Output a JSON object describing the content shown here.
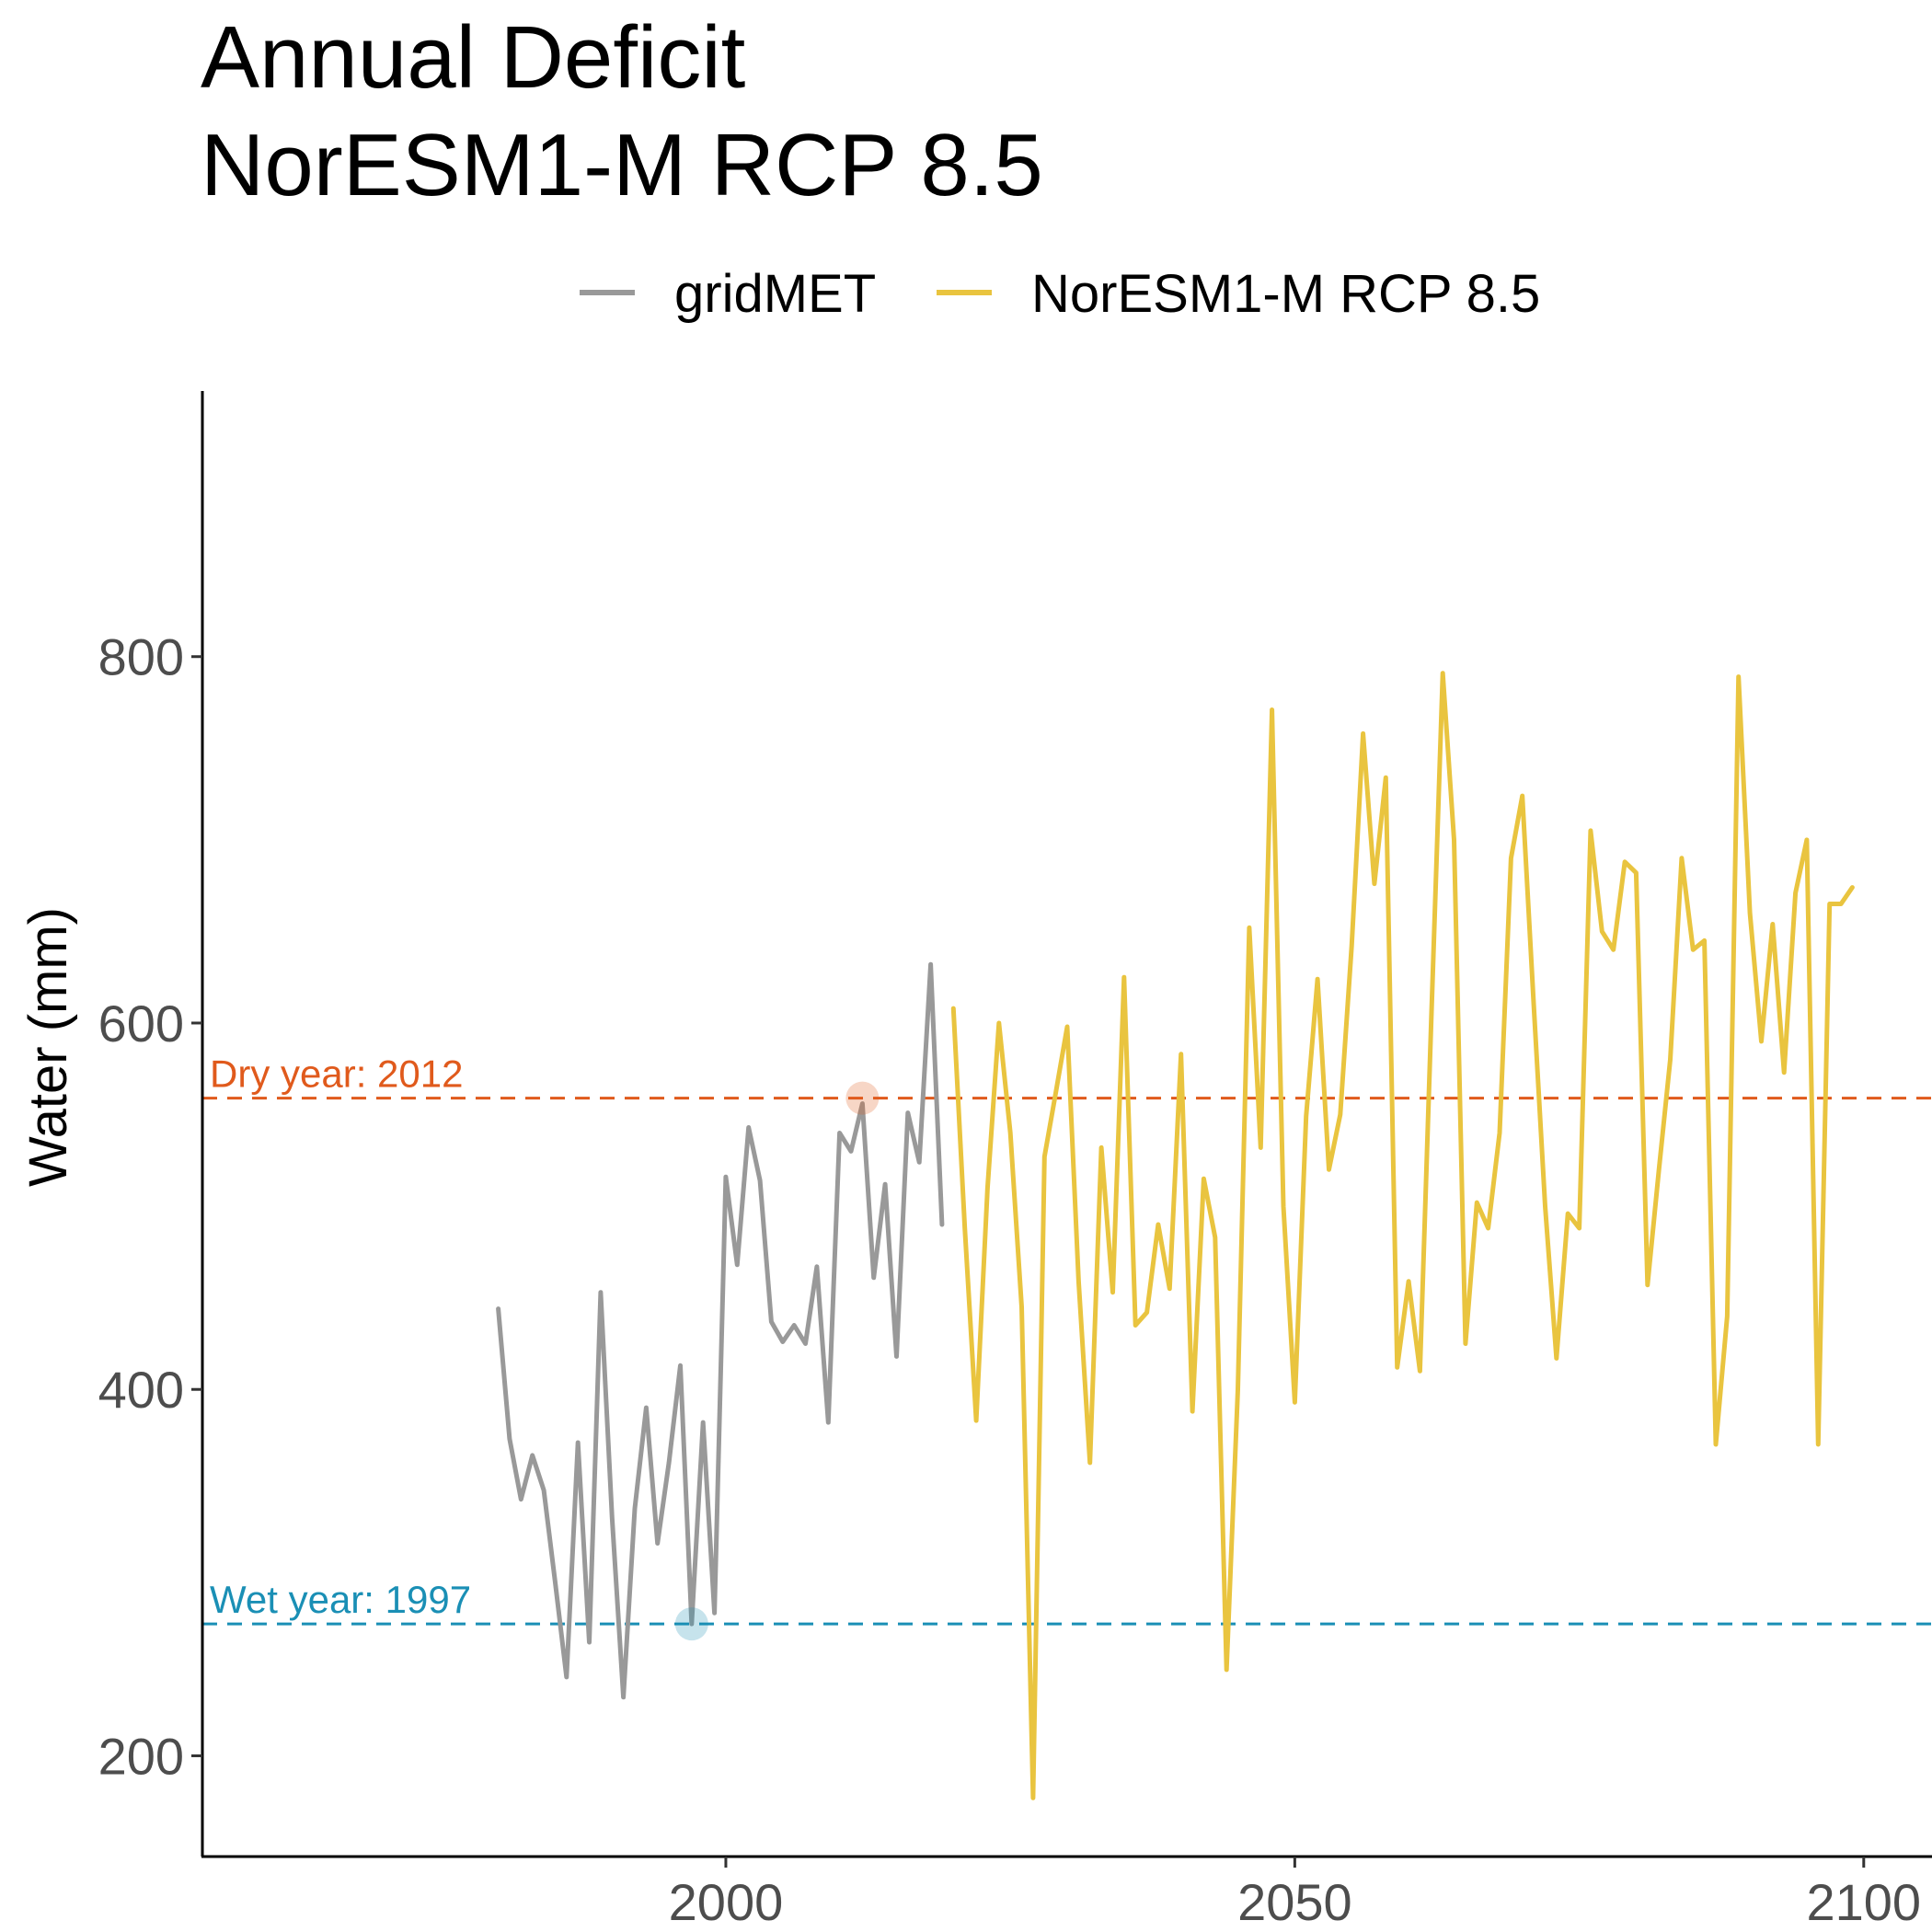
{
  "chart_data": {
    "type": "line",
    "title": "Annual Deficit",
    "subtitle": "NorESM1-M RCP 8.5",
    "xlabel": "",
    "ylabel": "Water (mm)",
    "xlim": [
      1954,
      2106
    ],
    "ylim": [
      145,
      945
    ],
    "x_ticks": [
      2000,
      2050,
      2100
    ],
    "y_ticks": [
      200,
      400,
      600,
      800
    ],
    "grid": false,
    "legend_position": "top",
    "series": [
      {
        "name": "gridMET",
        "color": "#999999",
        "x": [
          1980,
          1981,
          1982,
          1983,
          1984,
          1985,
          1986,
          1987,
          1988,
          1989,
          1990,
          1991,
          1992,
          1993,
          1994,
          1995,
          1996,
          1997,
          1998,
          1999,
          2000,
          2001,
          2002,
          2003,
          2004,
          2005,
          2006,
          2007,
          2008,
          2009,
          2010,
          2011,
          2012,
          2013,
          2014,
          2015,
          2016,
          2017,
          2018,
          2019
        ],
        "y": [
          444,
          373,
          340,
          364,
          345,
          295,
          243,
          371,
          262,
          453,
          330,
          232,
          335,
          390,
          316,
          360,
          413,
          272,
          382,
          278,
          516,
          468,
          543,
          514,
          437,
          426,
          435,
          425,
          467,
          382,
          540,
          530,
          556,
          461,
          512,
          418,
          551,
          524,
          632,
          490
        ]
      },
      {
        "name": "NorESM1-M RCP 8.5",
        "color": "#e9c43f",
        "x": [
          2020,
          2021,
          2022,
          2023,
          2024,
          2025,
          2026,
          2027,
          2028,
          2029,
          2030,
          2031,
          2032,
          2033,
          2034,
          2035,
          2036,
          2037,
          2038,
          2039,
          2040,
          2041,
          2042,
          2043,
          2044,
          2045,
          2046,
          2047,
          2048,
          2049,
          2050,
          2051,
          2052,
          2053,
          2054,
          2055,
          2056,
          2057,
          2058,
          2059,
          2060,
          2061,
          2062,
          2063,
          2064,
          2065,
          2066,
          2067,
          2068,
          2069,
          2070,
          2071,
          2072,
          2073,
          2074,
          2075,
          2076,
          2077,
          2078,
          2079,
          2080,
          2081,
          2082,
          2083,
          2084,
          2085,
          2086,
          2087,
          2088,
          2089,
          2090,
          2091,
          2092,
          2093,
          2094,
          2095,
          2096,
          2097,
          2098,
          2099
        ],
        "y": [
          608,
          488,
          383,
          510,
          600,
          540,
          445,
          177,
          527,
          562,
          598,
          459,
          360,
          532,
          453,
          625,
          435,
          442,
          490,
          455,
          583,
          388,
          515,
          483,
          247,
          400,
          652,
          532,
          771,
          500,
          393,
          549,
          624,
          520,
          550,
          642,
          758,
          676,
          734,
          412,
          459,
          410,
          603,
          791,
          700,
          425,
          502,
          488,
          540,
          690,
          724,
          610,
          500,
          417,
          496,
          488,
          705,
          650,
          640,
          688,
          682,
          457,
          520,
          580,
          690,
          640,
          645,
          370,
          440,
          789,
          660,
          590,
          654,
          573,
          671,
          700,
          370,
          665,
          665,
          674
        ]
      }
    ],
    "annotations": [
      {
        "text": "Dry year: 2012",
        "y": 559,
        "year": 2012,
        "color": "#e05a1c"
      },
      {
        "text": "Wet year: 1997",
        "y": 272,
        "year": 1997,
        "color": "#1a8fb5"
      }
    ]
  }
}
